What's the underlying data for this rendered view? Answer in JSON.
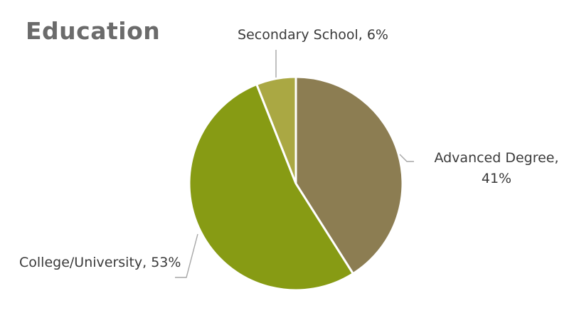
{
  "chart_data": {
    "type": "pie",
    "title": "Education",
    "slices": [
      {
        "label": "Advanced Degree",
        "value": 41,
        "color": "#8c7d52"
      },
      {
        "label": "College/University",
        "value": 53,
        "color": "#879b14"
      },
      {
        "label": "Secondary School",
        "value": 6,
        "color": "#aaa843"
      }
    ],
    "data_labels": [
      [
        "Advanced Degree,",
        "41%"
      ],
      [
        "College/University, 53%"
      ],
      [
        "Secondary School, 6%"
      ]
    ],
    "legend": "none"
  }
}
